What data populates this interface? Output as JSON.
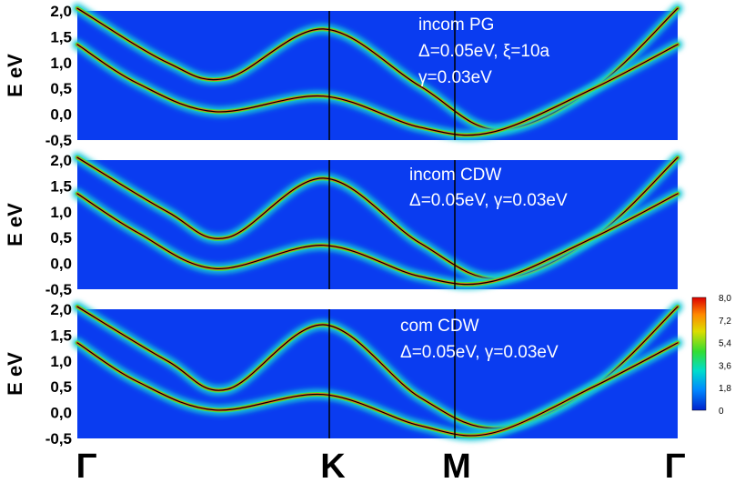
{
  "chart_data": [
    {
      "type": "heatmap",
      "annotations": [
        "incom PG",
        "Δ=0.05eV, ξ=10a",
        "γ=0.03eV"
      ],
      "ylabel": "E eV",
      "ylim": [
        -0.5,
        2.0
      ],
      "yticks": [
        "-0,5",
        "0,0",
        "0,5",
        "1,0",
        "1,5",
        "2,0"
      ],
      "x_ticks": [
        "Γ",
        "K",
        "M",
        "Γ"
      ],
      "bands": [
        {
          "k": [
            0,
            0.15,
            0.25,
            0.41,
            0.57,
            0.7,
            0.86,
            1.0
          ],
          "E": [
            2.05,
            1.0,
            0.7,
            1.65,
            0.55,
            -0.3,
            0.5,
            2.05
          ]
        },
        {
          "k": [
            0,
            0.1,
            0.23,
            0.41,
            0.57,
            0.69,
            0.86,
            1.0
          ],
          "E": [
            1.35,
            0.6,
            0.05,
            0.35,
            -0.25,
            -0.35,
            0.5,
            1.35
          ]
        }
      ]
    },
    {
      "type": "heatmap",
      "annotations": [
        "incom CDW",
        "Δ=0.05eV, γ=0.03eV"
      ],
      "ylabel": "E eV",
      "ylim": [
        -0.5,
        2.0
      ],
      "yticks": [
        "-0,5",
        "0,0",
        "0,5",
        "1,0",
        "1,5",
        "2,0"
      ],
      "x_ticks": [
        "Γ",
        "K",
        "M",
        "Γ"
      ],
      "bands": [
        {
          "k": [
            0,
            0.15,
            0.25,
            0.41,
            0.57,
            0.7,
            0.86,
            1.0
          ],
          "E": [
            2.05,
            1.0,
            0.5,
            1.65,
            0.4,
            -0.3,
            0.5,
            2.05
          ]
        },
        {
          "k": [
            0,
            0.1,
            0.23,
            0.41,
            0.57,
            0.69,
            0.86,
            1.0
          ],
          "E": [
            1.35,
            0.6,
            -0.1,
            0.35,
            -0.25,
            -0.35,
            0.5,
            1.35
          ]
        }
      ]
    },
    {
      "type": "heatmap",
      "annotations": [
        "com CDW",
        "Δ=0.05eV, γ=0.03eV"
      ],
      "ylabel": "E eV",
      "ylim": [
        -0.5,
        2.0
      ],
      "yticks": [
        "-0,5",
        "0,0",
        "0,5",
        "1,0",
        "1,5",
        "2,0"
      ],
      "x_ticks": [
        "Γ",
        "K",
        "M",
        "Γ"
      ],
      "bands": [
        {
          "k": [
            0,
            0.15,
            0.25,
            0.41,
            0.57,
            0.7,
            0.86,
            1.0
          ],
          "E": [
            2.05,
            1.0,
            0.45,
            1.7,
            0.3,
            -0.3,
            0.5,
            2.05
          ]
        },
        {
          "k": [
            0,
            0.1,
            0.23,
            0.41,
            0.57,
            0.69,
            0.86,
            1.0
          ],
          "E": [
            1.35,
            0.6,
            0.05,
            0.35,
            -0.25,
            -0.4,
            0.5,
            1.35
          ]
        }
      ]
    }
  ],
  "colorbar": {
    "ticks": [
      "8,0",
      "7,2",
      "5,4",
      "3,6",
      "1,8",
      "0"
    ],
    "colors": [
      "#0022cc",
      "#0088ff",
      "#00ddcc",
      "#33dd33",
      "#dddd00",
      "#ff8800",
      "#dd0000"
    ]
  },
  "colors": {
    "background": "#0a3cf0"
  }
}
